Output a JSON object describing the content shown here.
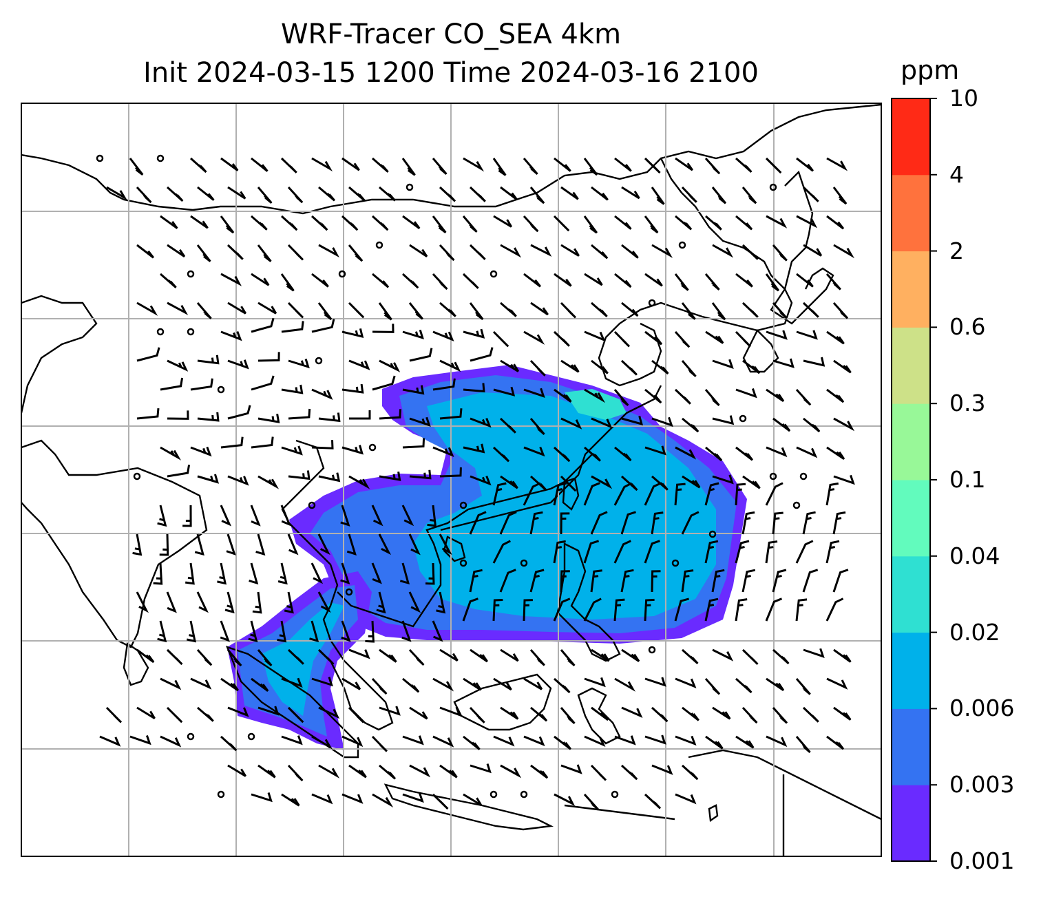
{
  "title": {
    "line1": "WRF-Tracer CO_SEA 4km",
    "line2": "Init 2024-03-15 1200 Time 2024-03-16 2100"
  },
  "colorbar": {
    "unit": "ppm",
    "levels": [
      "0.001",
      "0.003",
      "0.006",
      "0.02",
      "0.04",
      "0.1",
      "0.3",
      "0.6",
      "2",
      "4",
      "10"
    ],
    "colors": [
      "#6a2bff",
      "#3473f2",
      "#00b1ea",
      "#2fe0d2",
      "#62fbbd",
      "#98f898",
      "#cde188",
      "#ffb060",
      "#ff723d",
      "#ff2a16"
    ]
  },
  "map": {
    "field": "CO tracer concentration",
    "overlay": "wind barbs",
    "coastline_color": "#000000",
    "gridline_color": "#b0b0b0"
  }
}
